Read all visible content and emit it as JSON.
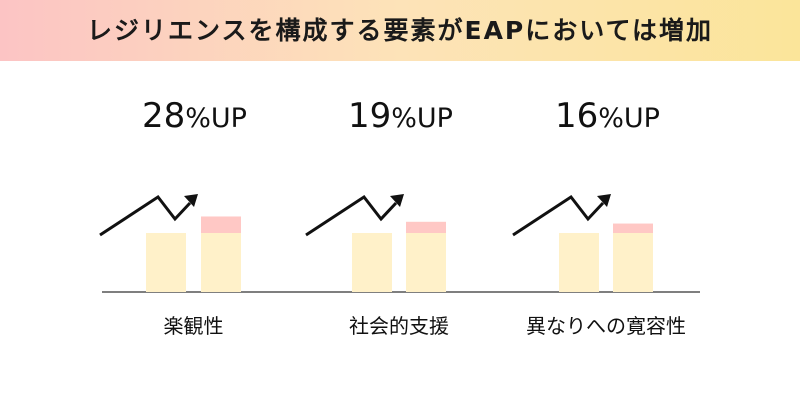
{
  "header": {
    "title": "レジリエンスを構成する要素がEAPにおいては増加"
  },
  "colors": {
    "base_bar": "#fff1c9",
    "increase_bar": "#ffc8c5",
    "axis": "#555555",
    "arrow": "#111111"
  },
  "chart_data": {
    "type": "bar",
    "categories": [
      "楽観性",
      "社会的支援",
      "異なりへの寛容性"
    ],
    "series": [
      {
        "values": [
          100,
          100,
          100
        ]
      },
      {
        "values": [
          128,
          119,
          116
        ]
      }
    ],
    "annotations": [
      "28%UP",
      "19%UP",
      "16%UP"
    ],
    "ylim": [
      0,
      180
    ],
    "grid": false
  }
}
